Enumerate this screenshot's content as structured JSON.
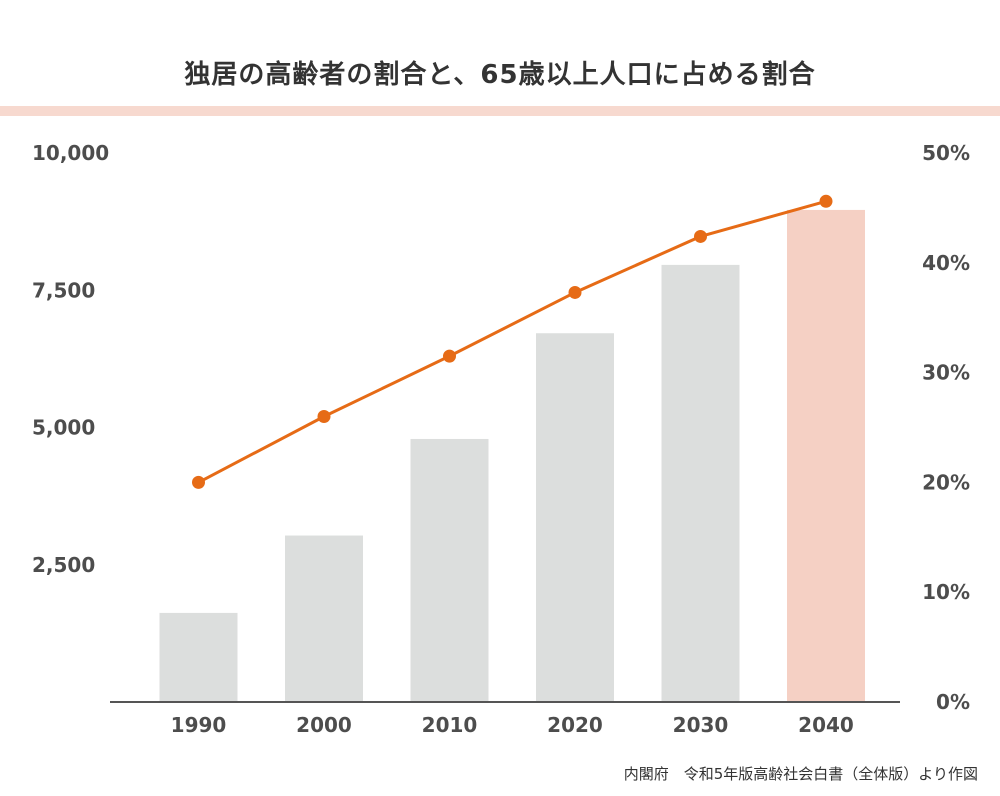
{
  "title": "独居の高齢者の割合と、65歳以上人口に占める割合",
  "source": "内閣府　令和5年版高齢社会白書（全体版）より作図",
  "colors": {
    "bar": "#dcdedd",
    "bar_highlight": "#f5d0c4",
    "line": "#e66b16",
    "title_rule": "#f7d9cf",
    "axis": "#555555"
  },
  "chart_data": {
    "type": "bar",
    "title": "独居の高齢者の割合と、65歳以上人口に占める割合",
    "categories": [
      "1990",
      "2000",
      "2010",
      "2020",
      "2030",
      "2040"
    ],
    "series": [
      {
        "type": "bar",
        "axis": "left",
        "values": [
          1623,
          3032,
          4791,
          6717,
          7962,
          8963
        ],
        "highlight_index": 5
      },
      {
        "type": "line",
        "axis": "right",
        "values": [
          20.0,
          26.0,
          31.5,
          37.3,
          42.4,
          45.6
        ]
      }
    ],
    "y_left": {
      "lim": [
        0,
        10000
      ],
      "ticks": [
        2500,
        5000,
        7500,
        10000
      ],
      "tick_labels": [
        "2,500",
        "5,000",
        "7,500",
        "10,000"
      ]
    },
    "y_right": {
      "lim": [
        0,
        50
      ],
      "ticks": [
        0,
        10,
        20,
        30,
        40,
        50
      ],
      "tick_labels": [
        "0%",
        "10%",
        "20%",
        "30%",
        "40%",
        "50%"
      ]
    },
    "xlabel": "",
    "grid": false,
    "legend": "none"
  }
}
